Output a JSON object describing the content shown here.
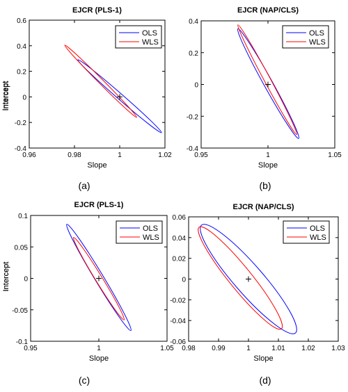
{
  "colors": {
    "ols": "#0000ff",
    "wls": "#ff0000",
    "axis": "#000000"
  },
  "chart_data": [
    {
      "type": "scatter",
      "title": "EJCR (PLS-1)",
      "caption": "(a)",
      "xlabel": "Slope",
      "ylabel": "Intercept",
      "xlim": [
        0.96,
        1.02
      ],
      "ylim": [
        -0.4,
        0.6
      ],
      "xticks": [
        0.96,
        0.98,
        1,
        1.02
      ],
      "xtick_labels": [
        "0.96",
        "0.98",
        "1",
        "1.02"
      ],
      "yticks": [
        -0.4,
        -0.2,
        0,
        0.2,
        0.4,
        0.6
      ],
      "ytick_labels": [
        "-0.4",
        "-0.2",
        "0",
        "0.2",
        "0.4",
        "0.6"
      ],
      "legend_position": "top-right",
      "legend": [
        "OLS",
        "WLS"
      ],
      "center": [
        1.0,
        0.0
      ],
      "series": [
        {
          "name": "OLS",
          "color": "ols",
          "ellipse": {
            "cx": 1.0,
            "cy": 0.0,
            "end_a": [
              0.9815,
              0.29
            ],
            "end_b": [
              1.0185,
              -0.28
            ],
            "width": 0.05
          }
        },
        {
          "name": "WLS",
          "color": "wls",
          "ellipse": {
            "cx": 1.0,
            "cy": 0.0,
            "end_a": [
              0.9757,
              0.405
            ],
            "end_b": [
              1.0075,
              -0.16
            ],
            "width": 0.045
          }
        }
      ]
    },
    {
      "type": "scatter",
      "title": "EJCR (NAP/CLS)",
      "caption": "(b)",
      "xlabel": "Slope",
      "ylabel": "Intercept",
      "xlim": [
        0.95,
        1.05
      ],
      "ylim": [
        -0.4,
        0.4
      ],
      "xticks": [
        0.95,
        1,
        1.05
      ],
      "xtick_labels": [
        "0.95",
        "1",
        "1.05"
      ],
      "yticks": [
        -0.4,
        -0.2,
        0,
        0.2,
        0.4
      ],
      "ytick_labels": [
        "-0.4",
        "-0.2",
        "0",
        "0.2",
        "0.4"
      ],
      "legend_position": "top-right",
      "legend": [
        "OLS",
        "WLS"
      ],
      "center": [
        1.0,
        0.0
      ],
      "series": [
        {
          "name": "OLS",
          "color": "ols",
          "ellipse": {
            "cx": 1.0,
            "cy": 0.0,
            "end_a": [
              0.9775,
              0.35
            ],
            "end_b": [
              1.023,
              -0.34
            ],
            "width": 0.07
          }
        },
        {
          "name": "WLS",
          "color": "wls",
          "ellipse": {
            "cx": 1.0,
            "cy": 0.0,
            "end_a": [
              0.9775,
              0.375
            ],
            "end_b": [
              1.0215,
              -0.315
            ],
            "width": 0.05
          }
        }
      ]
    },
    {
      "type": "scatter",
      "title": "EJCR (PLS-1)",
      "caption": "(c)",
      "xlabel": "Slope",
      "ylabel": "Intercept",
      "xlim": [
        0.95,
        1.05
      ],
      "ylim": [
        -0.1,
        0.1
      ],
      "xticks": [
        0.95,
        1,
        1.05
      ],
      "xtick_labels": [
        "0.95",
        "1",
        "1.05"
      ],
      "yticks": [
        -0.1,
        -0.05,
        0,
        0.05,
        0.1
      ],
      "ytick_labels": [
        "-0.1",
        "-0.05",
        "0",
        "0.05",
        "0.1"
      ],
      "legend_position": "top-right",
      "legend": [
        "OLS",
        "WLS"
      ],
      "center": [
        1.0,
        0.0
      ],
      "series": [
        {
          "name": "OLS",
          "color": "ols",
          "ellipse": {
            "cx": 1.0,
            "cy": 0.0,
            "end_a": [
              0.9765,
              0.086
            ],
            "end_b": [
              1.0235,
              -0.083
            ],
            "width": 0.07
          }
        },
        {
          "name": "WLS",
          "color": "wls",
          "ellipse": {
            "cx": 1.0,
            "cy": 0.0,
            "end_a": [
              0.9815,
              0.065
            ],
            "end_b": [
              1.0185,
              -0.066
            ],
            "width": 0.07
          }
        }
      ]
    },
    {
      "type": "scatter",
      "title": "EJCR (NAP/CLS)",
      "caption": "(d)",
      "xlabel": "Slope",
      "ylabel": "Intercept",
      "xlim": [
        0.98,
        1.03
      ],
      "ylim": [
        -0.06,
        0.06
      ],
      "xticks": [
        0.98,
        0.99,
        1,
        1.01,
        1.02,
        1.03
      ],
      "xtick_labels": [
        "0.98",
        "0.99",
        "1",
        "1.01",
        "1.02",
        "1.03"
      ],
      "yticks": [
        -0.06,
        -0.04,
        -0.02,
        0,
        0.02,
        0.04,
        0.06
      ],
      "ytick_labels": [
        "-0.06",
        "-0.04",
        "-0.02",
        "0",
        "0.02",
        "0.04",
        "0.06"
      ],
      "legend_position": "top-right",
      "legend": [
        "OLS",
        "WLS"
      ],
      "center": [
        1.0,
        0.0
      ],
      "series": [
        {
          "name": "OLS",
          "color": "ols",
          "ellipse": {
            "cx": 1.0,
            "cy": 0.0,
            "end_a": [
              0.9843,
              0.052
            ],
            "end_b": [
              1.0157,
              -0.052
            ],
            "width": 0.2
          }
        },
        {
          "name": "WLS",
          "color": "wls",
          "ellipse": {
            "cx": 1.0,
            "cy": 0.0,
            "end_a": [
              0.9835,
              0.05
            ],
            "end_b": [
              1.011,
              -0.048
            ],
            "width": 0.17
          }
        }
      ]
    }
  ]
}
